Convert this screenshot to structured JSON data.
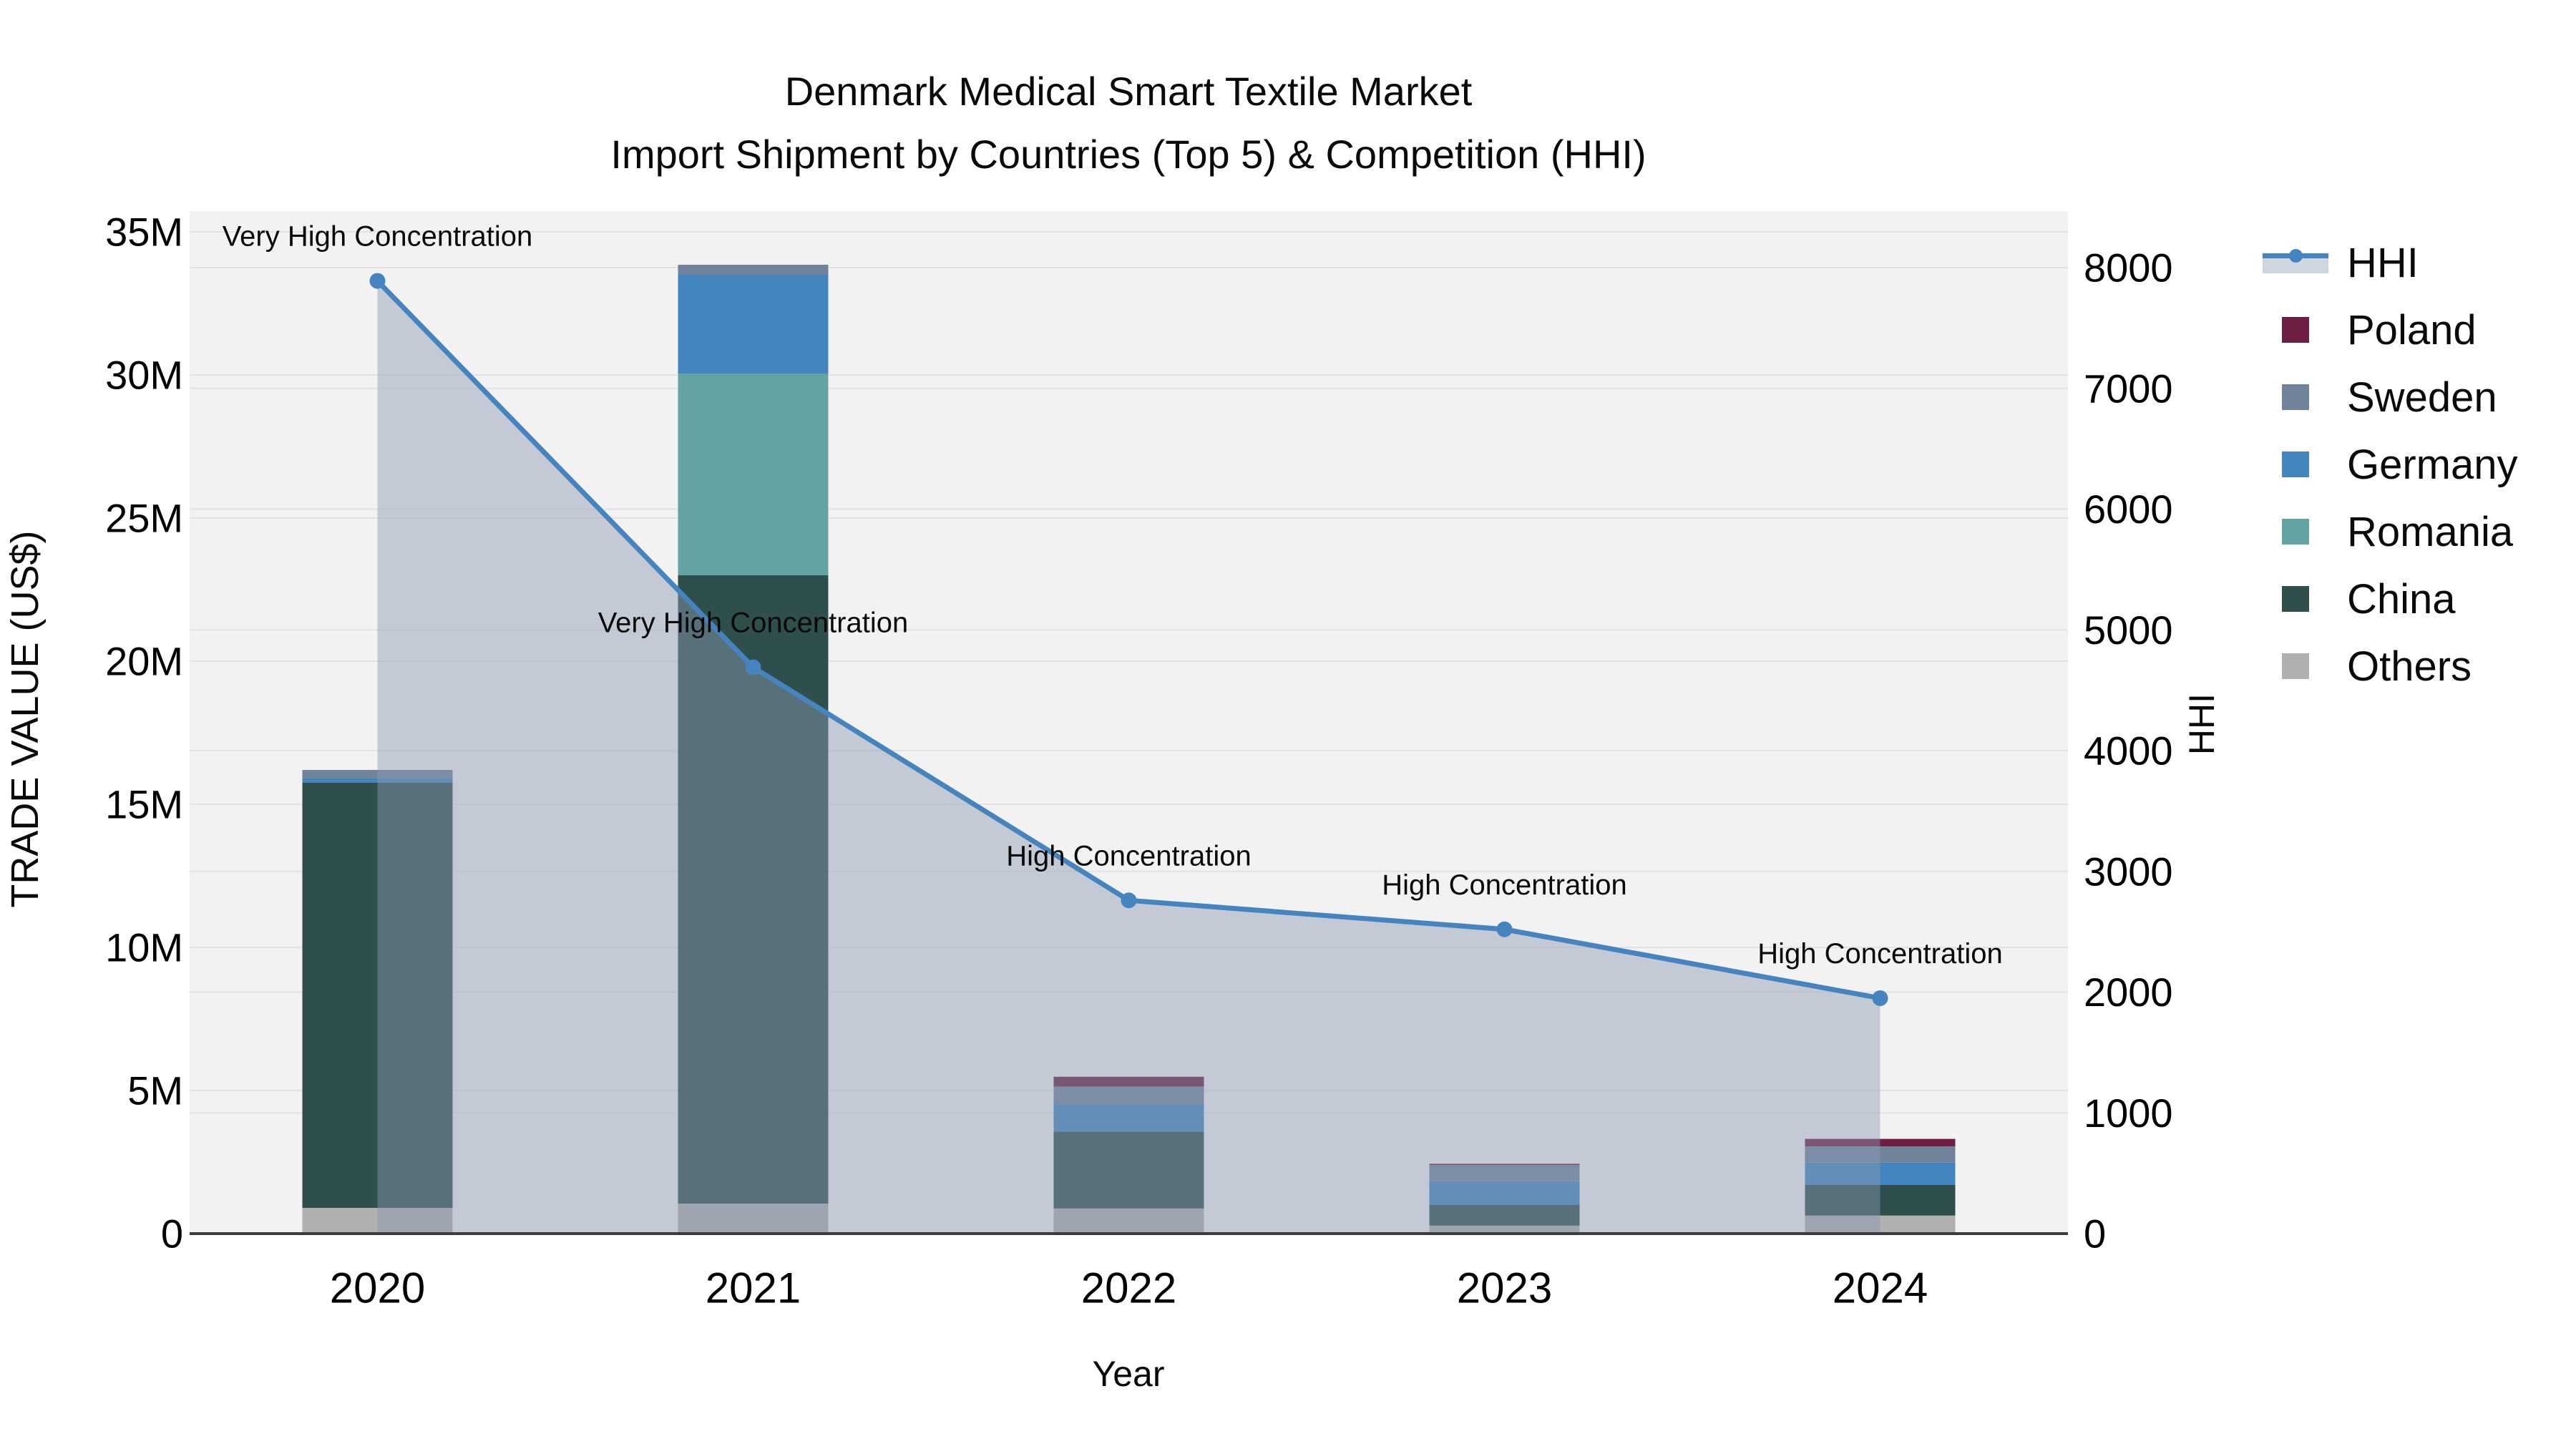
{
  "chart_data": {
    "type": "bar+line",
    "title_line1": "Denmark Medical Smart Textile Market",
    "title_line2": "Import Shipment by Countries (Top 5) & Competition (HHI)",
    "xlabel": "Year",
    "ylabel_left": "TRADE VALUE (US$)",
    "ylabel_right": "HHI",
    "categories": [
      "2020",
      "2021",
      "2022",
      "2023",
      "2024"
    ],
    "y_left_ticks": [
      "0",
      "5M",
      "10M",
      "15M",
      "20M",
      "25M",
      "30M",
      "35M"
    ],
    "y_left_tick_values_musd": [
      0,
      5,
      10,
      15,
      20,
      25,
      30,
      35
    ],
    "ylim_left_musd": [
      0,
      35.9
    ],
    "y_right_ticks": [
      "0",
      "1000",
      "2000",
      "3000",
      "4000",
      "5000",
      "6000",
      "7000",
      "8000"
    ],
    "y_right_tick_values": [
      0,
      1000,
      2000,
      3000,
      4000,
      5000,
      6000,
      7000,
      8000
    ],
    "ylim_right": [
      0,
      8470
    ],
    "grid": true,
    "legend_position": "right",
    "plot_bg": "#f2f2f3",
    "grid_color": "#e3e3e6",
    "axis_line_color": "#3c3c3c",
    "bar_unit": "million US$",
    "series": [
      {
        "name": "Poland",
        "color": "#6E1E42",
        "values_musd": [
          0,
          0,
          0.34,
          0.04,
          0.26
        ]
      },
      {
        "name": "Sweden",
        "color": "#71839B",
        "values_musd": [
          0.3,
          0.35,
          0.63,
          0.57,
          0.57
        ]
      },
      {
        "name": "Germany",
        "color": "#4385BE",
        "values_musd": [
          0.15,
          3.45,
          0.95,
          0.83,
          0.78
        ]
      },
      {
        "name": "Romania",
        "color": "#63A4A2",
        "values_musd": [
          0,
          7.05,
          0,
          0,
          0
        ]
      },
      {
        "name": "China",
        "color": "#2E4F4B",
        "values_musd": [
          14.85,
          21.95,
          2.68,
          0.72,
          1.07
        ]
      },
      {
        "name": "Others",
        "color": "#B0B0B0",
        "values_musd": [
          0.9,
          1.05,
          0.88,
          0.28,
          0.63
        ]
      }
    ],
    "stack_bottom_to_top": [
      "Others",
      "China",
      "Romania",
      "Germany",
      "Sweden",
      "Poland"
    ],
    "line_series": {
      "name": "HHI",
      "axis": "right",
      "color": "#4584BE",
      "area_fill": "rgba(139,154,177,0.45)",
      "values": [
        7890,
        4690,
        2760,
        2520,
        1950
      ]
    },
    "annotations": [
      "Very High Concentration",
      "Very High Concentration",
      "High Concentration",
      "High Concentration",
      "High Concentration"
    ]
  }
}
